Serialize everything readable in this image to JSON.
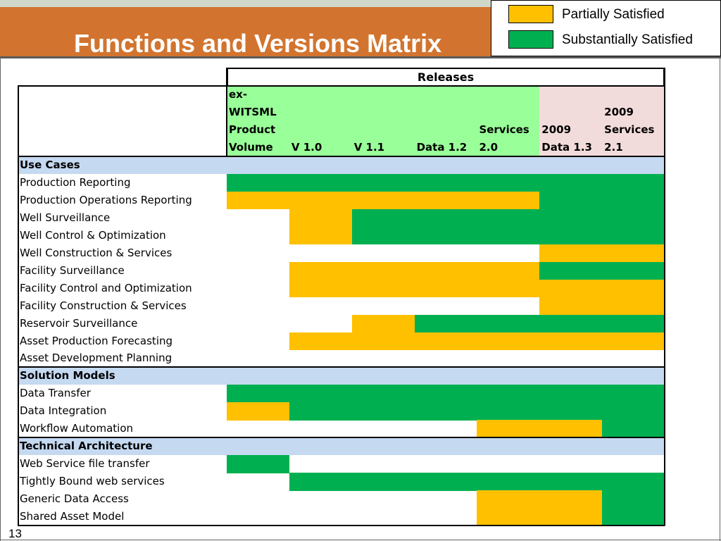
{
  "slide": {
    "title": "Functions and Versions Matrix",
    "page_number": "13"
  },
  "legend": [
    {
      "label": "Partially Satisfied",
      "color": "#ffc000"
    },
    {
      "label": "Substantially Satisfied",
      "color": "#00b050"
    }
  ],
  "matrix": {
    "group_header": "Releases",
    "columns": [
      {
        "lines": [
          "ex-",
          "WITSML",
          "Product",
          "Volume"
        ]
      },
      {
        "lines": [
          "V 1.0"
        ]
      },
      {
        "lines": [
          "V 1.1"
        ]
      },
      {
        "lines": [
          "Data 1.2"
        ]
      },
      {
        "lines": [
          "Services",
          "2.0"
        ]
      },
      {
        "lines": [
          "2009",
          "Data 1.3"
        ]
      },
      {
        "lines": [
          "2009",
          "Services",
          "2.1"
        ]
      }
    ],
    "colors": {
      "S": "#00b050",
      "P": "#ffc000",
      "header_green": "#99ff99",
      "header_pink": "#f2dcdb",
      "section": "#c5d9f1"
    },
    "sections": [
      {
        "name": "Use Cases",
        "rows": [
          {
            "label": "Production Reporting",
            "cells": [
              "S",
              "S",
              "S",
              "S",
              "S",
              "S",
              "S"
            ]
          },
          {
            "label": "Production Operations Reporting",
            "cells": [
              "P",
              "P",
              "P",
              "P",
              "P",
              "S",
              "S"
            ]
          },
          {
            "label": "Well  Surveillance",
            "cells": [
              "",
              "P",
              "S",
              "S",
              "S",
              "S",
              "S"
            ]
          },
          {
            "label": "Well Control & Optimization",
            "cells": [
              "",
              "P",
              "S",
              "S",
              "S",
              "S",
              "S"
            ]
          },
          {
            "label": "Well Construction & Services",
            "cells": [
              "",
              "",
              "",
              "",
              "",
              "P",
              "P"
            ]
          },
          {
            "label": "Facility Surveillance",
            "cells": [
              "",
              "P",
              "P",
              "P",
              "P",
              "S",
              "S"
            ]
          },
          {
            "label": "Facility Control and Optimization",
            "cells": [
              "",
              "P",
              "P",
              "P",
              "P",
              "P",
              "P"
            ]
          },
          {
            "label": "Facility Construction & Services",
            "cells": [
              "",
              "",
              "",
              "",
              "",
              "P",
              "P"
            ]
          },
          {
            "label": "Reservoir Surveillance",
            "cells": [
              "",
              "",
              "P",
              "S",
              "S",
              "S",
              "S"
            ]
          },
          {
            "label": "Asset Production Forecasting",
            "cells": [
              "",
              "P",
              "P",
              "P",
              "P",
              "P",
              "P"
            ]
          },
          {
            "label": "Asset Development Planning",
            "cells": [
              "",
              "",
              "",
              "",
              "",
              "",
              ""
            ]
          }
        ]
      },
      {
        "name": "Solution Models",
        "rows": [
          {
            "label": "Data Transfer",
            "cells": [
              "S",
              "S",
              "S",
              "S",
              "S",
              "S",
              "S"
            ]
          },
          {
            "label": "Data Integration",
            "cells": [
              "P",
              "S",
              "S",
              "S",
              "S",
              "S",
              "S"
            ]
          },
          {
            "label": "Workflow Automation",
            "cells": [
              "",
              "",
              "",
              "",
              "P",
              "P",
              "S"
            ]
          }
        ]
      },
      {
        "name": "Technical Architecture",
        "rows": [
          {
            "label": "Web Service file transfer",
            "cells": [
              "S",
              "",
              "",
              "",
              "",
              "",
              ""
            ]
          },
          {
            "label": "Tightly Bound web services",
            "cells": [
              "",
              "S",
              "S",
              "S",
              "S",
              "S",
              "S"
            ]
          },
          {
            "label": "Generic Data Access",
            "cells": [
              "",
              "",
              "",
              "",
              "P",
              "P",
              "S"
            ]
          },
          {
            "label": "Shared Asset Model",
            "cells": [
              "",
              "",
              "",
              "",
              "P",
              "P",
              "S"
            ]
          }
        ]
      }
    ]
  }
}
